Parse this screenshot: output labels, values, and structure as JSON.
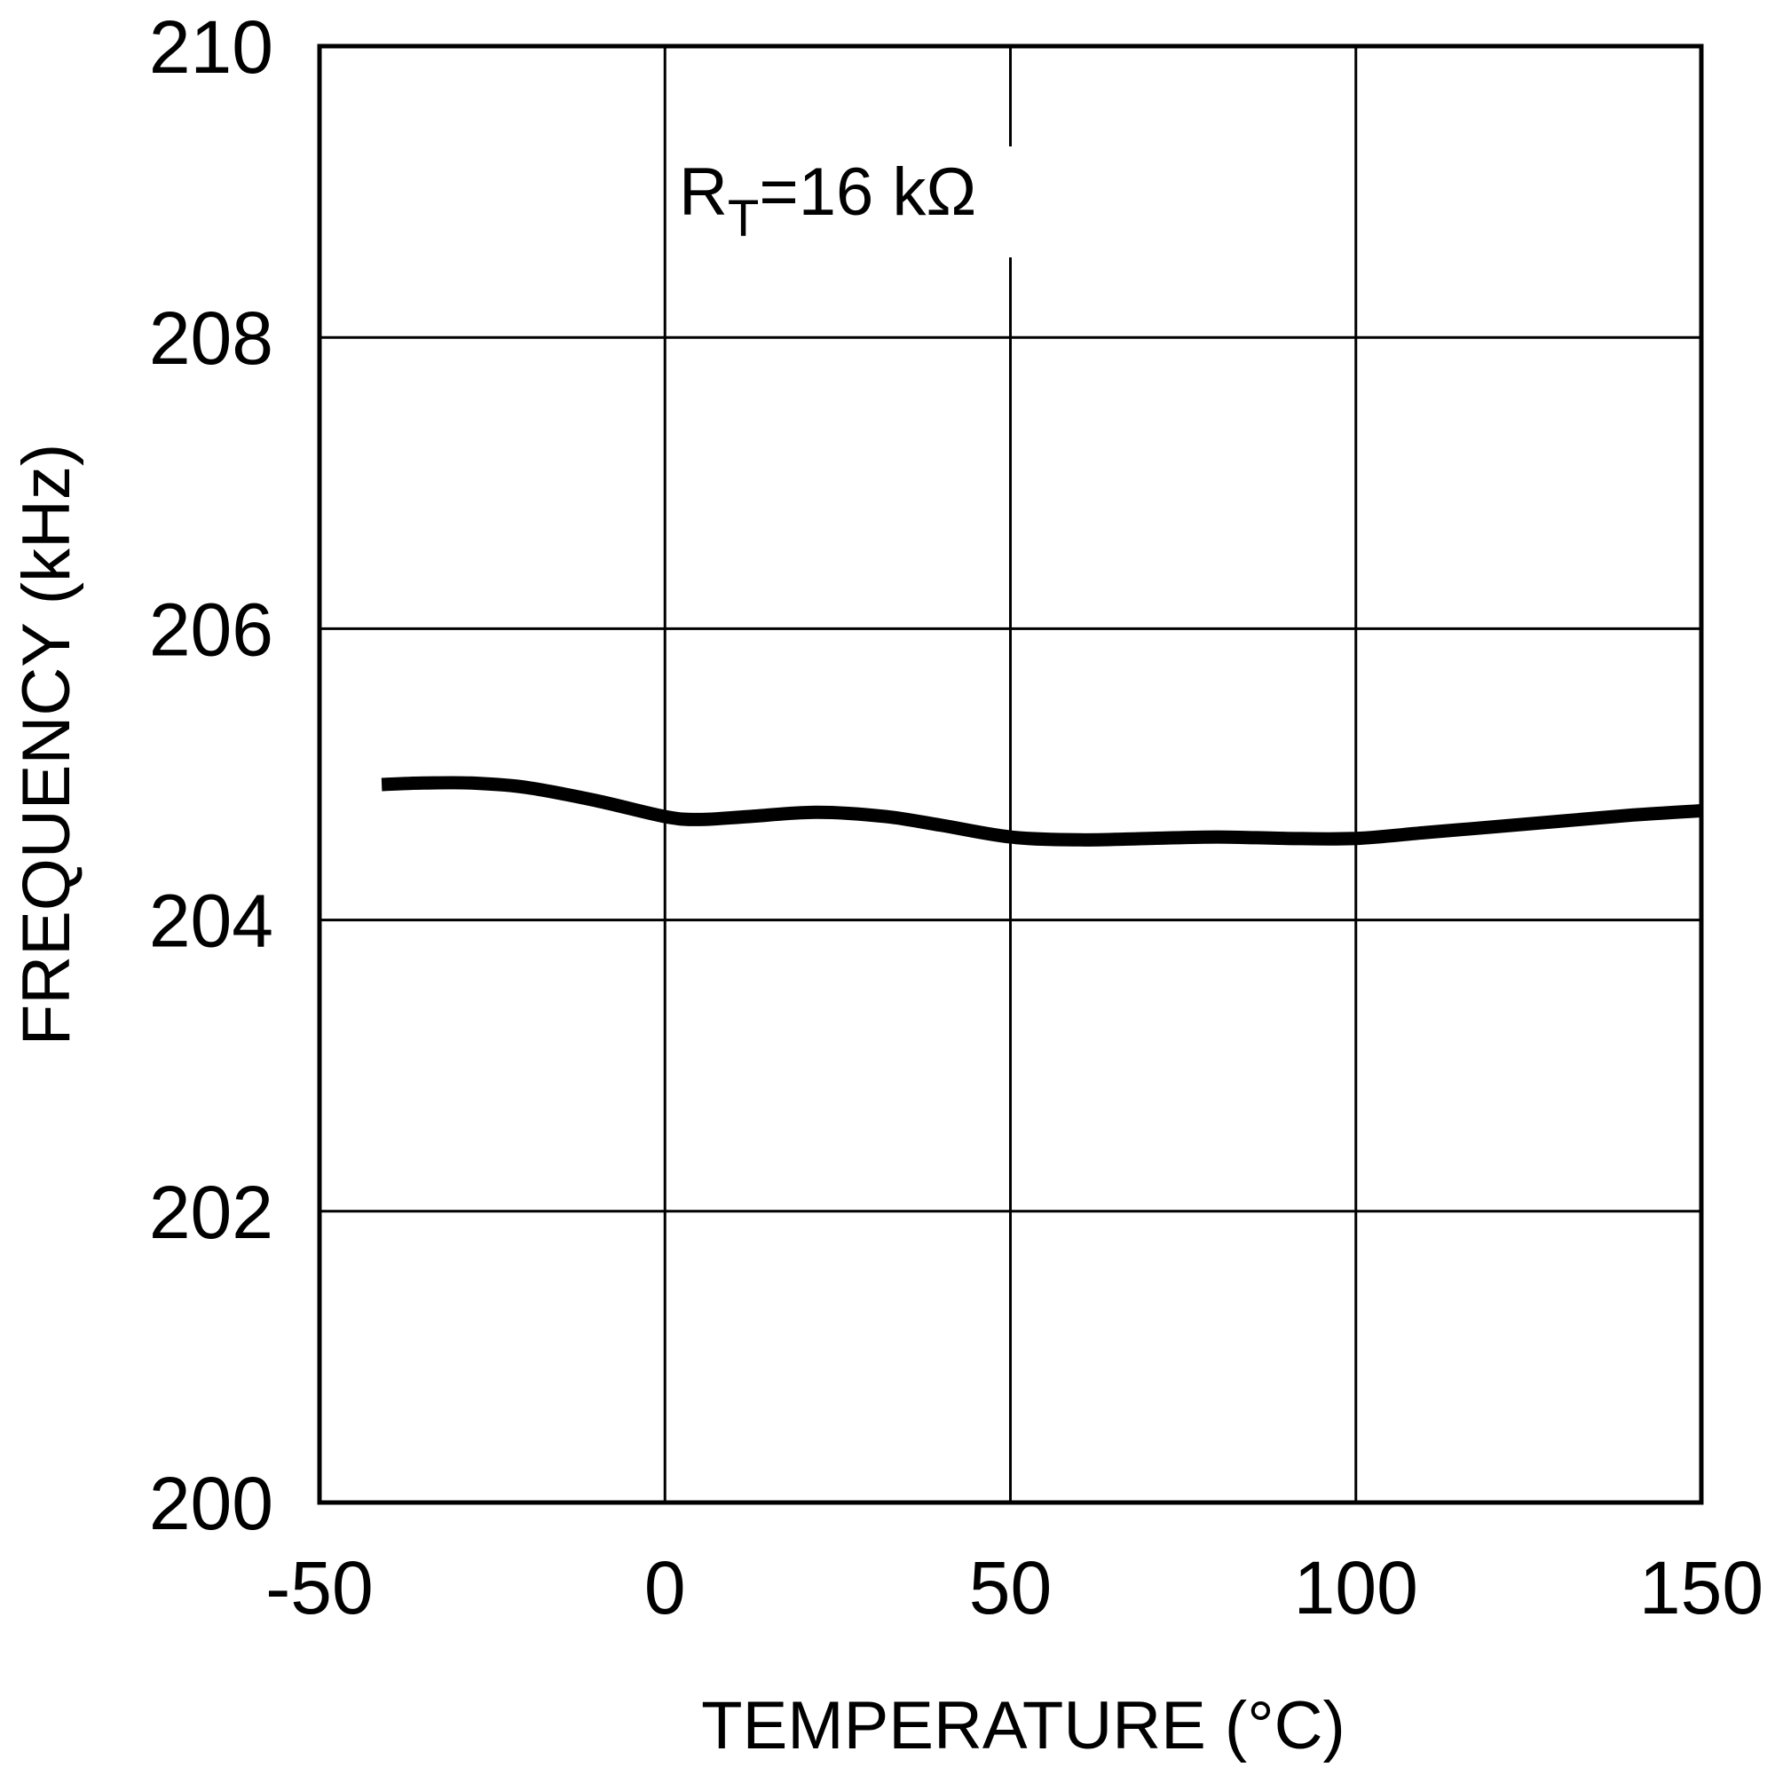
{
  "chart_data": {
    "type": "line",
    "title": "",
    "xlabel": "TEMPERATURE (°C)",
    "ylabel": "FREQUENCY (kHz)",
    "xlim": [
      -50,
      150
    ],
    "ylim": [
      200,
      210
    ],
    "x_ticks": [
      "-50",
      "0",
      "50",
      "100",
      "150"
    ],
    "y_ticks": [
      "200",
      "202",
      "204",
      "206",
      "208",
      "210"
    ],
    "grid": true,
    "legend": "none",
    "annotation": {
      "main": "R",
      "subscript": "T",
      "value": "=16 kΩ"
    },
    "series": [
      {
        "color": "#000000",
        "x": [
          -41,
          -35,
          -28,
          -20,
          -10,
          0,
          5,
          12,
          22,
          32,
          40,
          50,
          60,
          70,
          80,
          90,
          100,
          110,
          120,
          130,
          140,
          150
        ],
        "y": [
          204.93,
          204.94,
          204.94,
          204.91,
          204.82,
          204.71,
          204.69,
          204.71,
          204.74,
          204.71,
          204.65,
          204.57,
          204.55,
          204.56,
          204.57,
          204.56,
          204.56,
          204.6,
          204.64,
          204.68,
          204.72,
          204.75
        ]
      }
    ]
  }
}
